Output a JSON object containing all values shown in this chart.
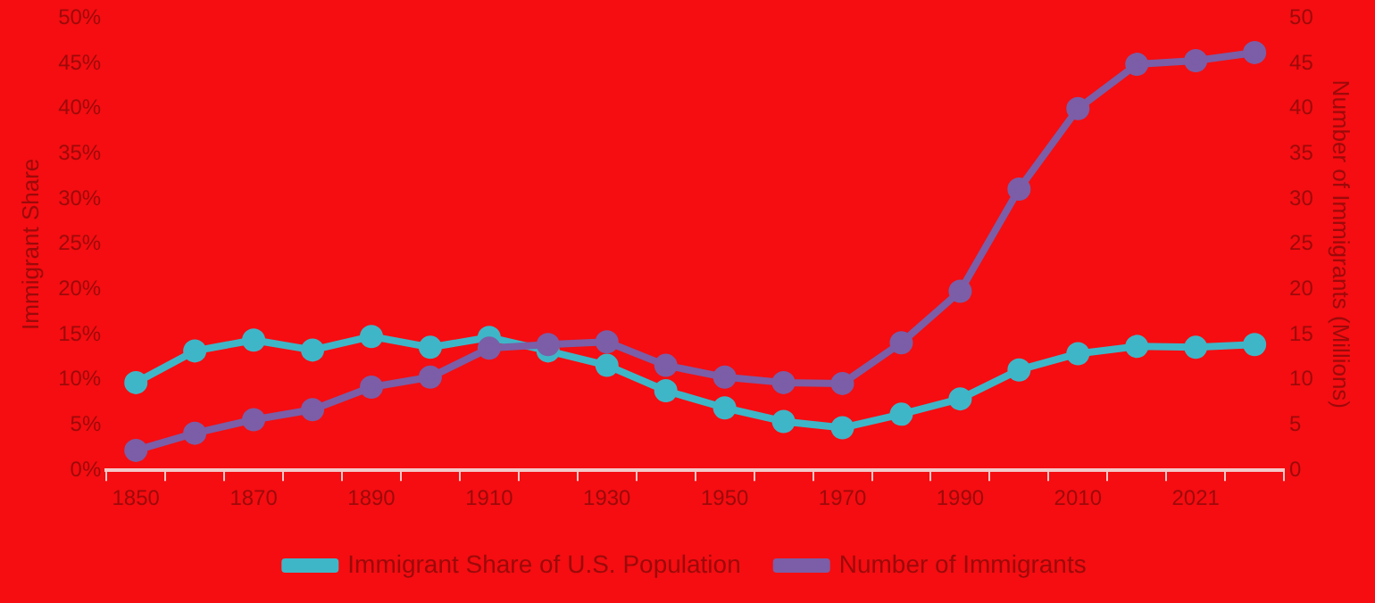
{
  "chart_data": {
    "type": "line",
    "categories": [
      "1850",
      null,
      "1870",
      null,
      "1890",
      null,
      "1910",
      null,
      "1930",
      null,
      "1950",
      null,
      "1970",
      null,
      "1990",
      null,
      "2010",
      null,
      "2021",
      null
    ],
    "ylabel": "Immigrant Share",
    "y2label": "Number of Immigrants (Millions)",
    "series": [
      {
        "name": "Immigrant Share of U.S. Population",
        "color": "#3fb6c8",
        "values": [
          9.7,
          13.2,
          14.4,
          13.3,
          14.8,
          13.6,
          14.7,
          13.2,
          11.6,
          8.8,
          6.9,
          5.4,
          4.7,
          6.2,
          7.9,
          11.1,
          12.9,
          13.7,
          13.6,
          13.9
        ]
      },
      {
        "name": "Number of Immigrants",
        "color": "#7b5ea7",
        "axis": "y2",
        "values": [
          2.2,
          4.1,
          5.6,
          6.7,
          9.2,
          10.3,
          13.5,
          13.9,
          14.2,
          11.6,
          10.3,
          9.7,
          9.6,
          14.1,
          19.8,
          31.1,
          40.0,
          44.9,
          45.3,
          46.2
        ]
      }
    ],
    "ylim": [
      0,
      50
    ],
    "yticks": [
      {
        "value": 0,
        "label": "0%"
      },
      {
        "value": 5,
        "label": "5%"
      },
      {
        "value": 10,
        "label": "10%"
      },
      {
        "value": 15,
        "label": "15%"
      },
      {
        "value": 20,
        "label": "20%"
      },
      {
        "value": 25,
        "label": "25%"
      },
      {
        "value": 30,
        "label": "30%"
      },
      {
        "value": 35,
        "label": "35%"
      },
      {
        "value": 40,
        "label": "40%"
      },
      {
        "value": 45,
        "label": "45%"
      },
      {
        "value": 50,
        "label": "50%"
      }
    ],
    "y2lim": [
      0,
      50
    ],
    "y2ticks": [
      0,
      5,
      10,
      15,
      20,
      25,
      30,
      35,
      40,
      45,
      50
    ],
    "grid": false,
    "legend": "bottom",
    "marker": "circle",
    "line_style": "solid"
  }
}
